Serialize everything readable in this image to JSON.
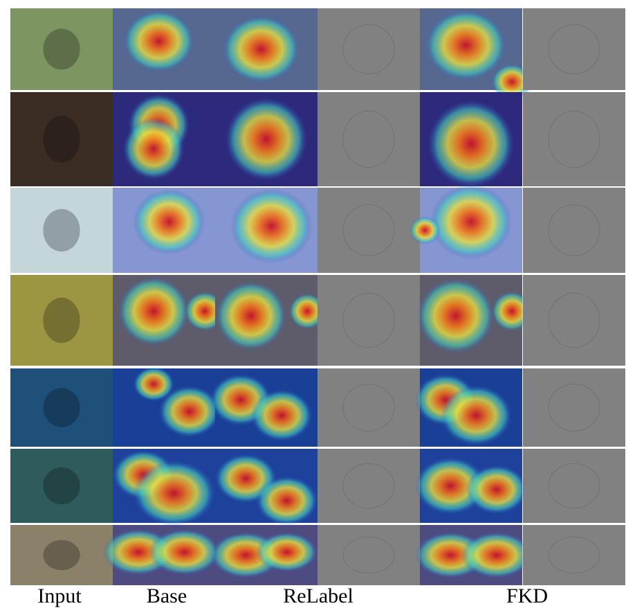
{
  "columns": [
    "Input",
    "Base",
    "ReLabel",
    "FKD"
  ]
}
